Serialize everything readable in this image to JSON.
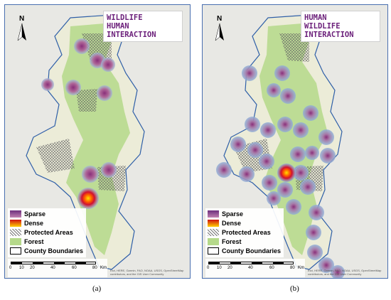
{
  "panels": {
    "a": {
      "title_lines": [
        "WILDLIFE",
        "HUMAN",
        "INTERACTION"
      ],
      "caption": "(a)"
    },
    "b": {
      "title_lines": [
        "HUMAN",
        "WILDLIFE",
        "INTERACTION"
      ],
      "caption": "(b)"
    }
  },
  "north_label": "N",
  "legend": {
    "sparse": "Sparse",
    "dense": "Dense",
    "protected": "Protected Areas",
    "forest": "Forest",
    "county": "County Boundaries"
  },
  "scale": {
    "ticks": [
      "0",
      "10",
      "20",
      "40",
      "60",
      "80"
    ],
    "unit": "Km"
  },
  "attribution": "Esri, HERE, Garmin, FAO, NOAA, USGS, OpenStreetMap contributors, and the GIS User Community",
  "colors": {
    "sparse": "#6d2f7d",
    "dense": "#ffd000",
    "forest": "#b5d98a",
    "boundary": "#2f5fa8",
    "title": "#6b1f7a"
  }
}
